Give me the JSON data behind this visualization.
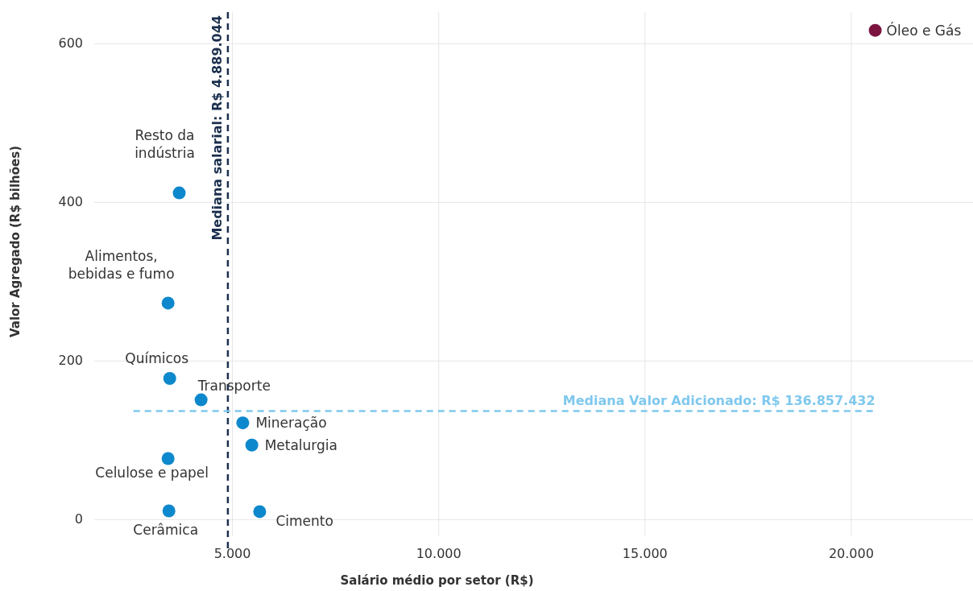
{
  "chart_data": {
    "type": "scatter",
    "xlabel": "Salário médio por setor (R$)",
    "ylabel": "Valor Agregado (R$ bilhões)",
    "series": [
      {
        "x": [
          20580,
          3710,
          3440,
          3480,
          4240,
          5250,
          5470,
          3440,
          3460,
          5660
        ],
        "values": [
          617,
          412,
          273,
          178,
          151,
          122,
          94,
          77,
          11,
          10
        ],
        "colors": [
          "#7b1540",
          "#0e88cc",
          "#0e88cc",
          "#0e88cc",
          "#0e88cc",
          "#0e88cc",
          "#0e88cc",
          "#0e88cc",
          "#0e88cc",
          "#0e88cc"
        ]
      }
    ],
    "annotations": [
      {
        "text": "Óleo e Gás",
        "x": 20580,
        "y": 617
      },
      {
        "text": "Resto da\nindústria",
        "x": 3710,
        "y": 412
      },
      {
        "text": "Alimentos,\nbebidas e fumo",
        "x": 3440,
        "y": 273
      },
      {
        "text": "Químicos",
        "x": 3480,
        "y": 178
      },
      {
        "text": "Transporte",
        "x": 4240,
        "y": 151
      },
      {
        "text": "Mineração",
        "x": 5250,
        "y": 122
      },
      {
        "text": "Metalurgia",
        "x": 5470,
        "y": 94
      },
      {
        "text": "Celulose e papel",
        "x": 3440,
        "y": 77
      },
      {
        "text": "Cerâmica",
        "x": 3460,
        "y": 11
      },
      {
        "text": "Cimento",
        "x": 5660,
        "y": 10
      }
    ],
    "ref_lines": [
      {
        "axis": "x",
        "value": 4889.044,
        "label": "Mediana salarial: R$ 4.889.044",
        "color": "#1b2f4e",
        "line_style": "dashed"
      },
      {
        "axis": "y",
        "value": 136.857432,
        "label": "Mediana Valor Adicionado: R$ 136.857.432",
        "color": "#7fc8ee",
        "line_style": "dashed"
      }
    ],
    "xlim": [
      1650,
      22950
    ],
    "ylim": [
      -20,
      640
    ],
    "xticks": [
      {
        "value": 5000,
        "label": "5.000"
      },
      {
        "value": 10000,
        "label": "10.000"
      },
      {
        "value": 15000,
        "label": "15.000"
      },
      {
        "value": 20000,
        "label": "20.000"
      }
    ],
    "yticks": [
      0,
      200,
      400,
      600
    ],
    "grid": true,
    "marker": "circle"
  }
}
